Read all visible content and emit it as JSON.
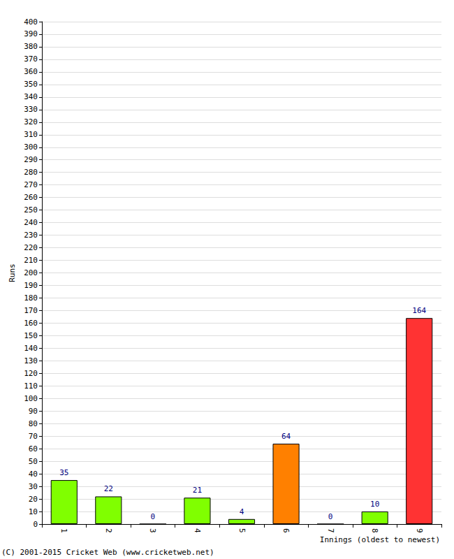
{
  "chart_data": {
    "type": "bar",
    "x_label": "Innings (oldest to newest)",
    "y_label": "Runs",
    "annotations": [
      "(C) 2001-2015 Cricket Web (www.cricketweb.net)"
    ],
    "categories": [
      "1",
      "2",
      "3",
      "4",
      "5",
      "6",
      "7",
      "8",
      "9"
    ],
    "values": [
      35,
      22,
      0,
      21,
      4,
      64,
      0,
      10,
      164
    ],
    "colors": [
      "#80ff00",
      "#80ff00",
      "#80ff00",
      "#80ff00",
      "#80ff00",
      "#ff8000",
      "#80ff00",
      "#80ff00",
      "#ff3333"
    ],
    "ylim": [
      0,
      400
    ],
    "yticks": [
      0,
      10,
      20,
      30,
      40,
      50,
      60,
      70,
      80,
      90,
      100,
      110,
      120,
      130,
      140,
      150,
      160,
      170,
      180,
      190,
      200,
      210,
      220,
      230,
      240,
      250,
      260,
      270,
      280,
      290,
      300,
      310,
      320,
      330,
      340,
      350,
      360,
      370,
      380,
      390,
      400
    ],
    "grid": true,
    "data_labels": true
  }
}
